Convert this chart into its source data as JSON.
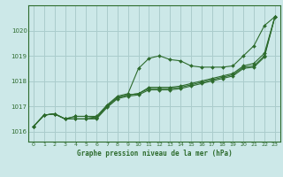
{
  "title": "Graphe pression niveau de la mer (hPa)",
  "bg_color": "#cce8e8",
  "grid_color": "#aacccc",
  "line_color": "#2d6b2d",
  "xlim": [
    -0.5,
    23.5
  ],
  "ylim": [
    1015.6,
    1021.0
  ],
  "yticks": [
    1016,
    1017,
    1018,
    1019,
    1020
  ],
  "xticks": [
    0,
    1,
    2,
    3,
    4,
    5,
    6,
    7,
    8,
    9,
    10,
    11,
    12,
    13,
    14,
    15,
    16,
    17,
    18,
    19,
    20,
    21,
    22,
    23
  ],
  "series": [
    [
      1016.2,
      1016.65,
      1016.7,
      1016.5,
      1016.6,
      1016.6,
      1016.6,
      1017.05,
      1017.4,
      1017.5,
      1018.5,
      1018.9,
      1019.0,
      1018.85,
      1018.8,
      1018.6,
      1018.55,
      1018.55,
      1018.55,
      1018.6,
      1019.0,
      1019.4,
      1020.2,
      1020.55
    ],
    [
      1016.2,
      1016.65,
      1016.7,
      1016.5,
      1016.6,
      1016.6,
      1016.55,
      1017.0,
      1017.35,
      1017.45,
      1017.5,
      1017.75,
      1017.75,
      1017.75,
      1017.8,
      1017.9,
      1018.0,
      1018.1,
      1018.2,
      1018.3,
      1018.6,
      1018.7,
      1019.1,
      1020.55
    ],
    [
      1016.2,
      1016.65,
      1016.7,
      1016.5,
      1016.5,
      1016.5,
      1016.55,
      1017.0,
      1017.35,
      1017.45,
      1017.5,
      1017.7,
      1017.7,
      1017.7,
      1017.75,
      1017.85,
      1017.95,
      1018.05,
      1018.15,
      1018.25,
      1018.55,
      1018.6,
      1019.0,
      1020.55
    ],
    [
      1016.2,
      1016.65,
      1016.7,
      1016.5,
      1016.5,
      1016.5,
      1016.5,
      1016.95,
      1017.3,
      1017.4,
      1017.45,
      1017.65,
      1017.65,
      1017.65,
      1017.7,
      1017.8,
      1017.9,
      1018.0,
      1018.1,
      1018.2,
      1018.5,
      1018.55,
      1018.95,
      1020.55
    ]
  ]
}
